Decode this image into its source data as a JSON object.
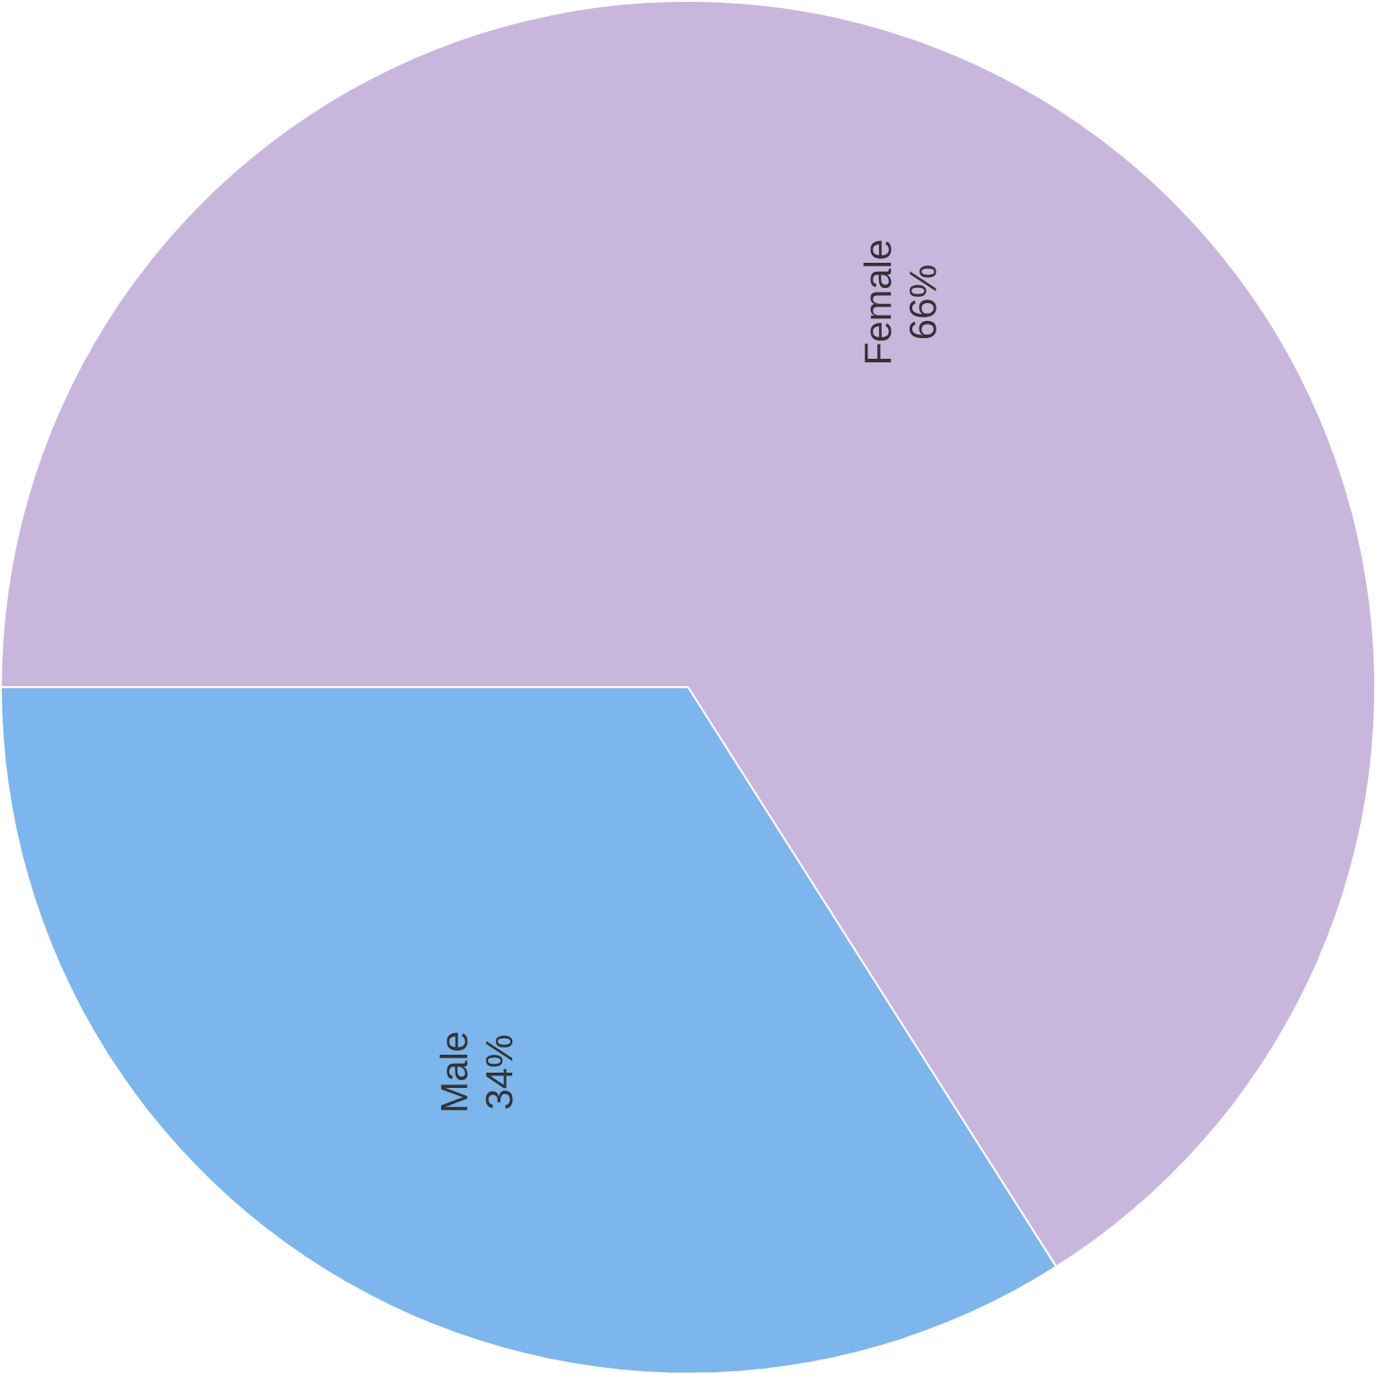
{
  "chart_data": {
    "type": "pie",
    "categories": [
      "Female",
      "Male"
    ],
    "values": [
      66,
      34
    ],
    "colors": [
      "#c9b6dd",
      "#7cb6ec"
    ],
    "value_labels": [
      "66%",
      "34%"
    ]
  }
}
